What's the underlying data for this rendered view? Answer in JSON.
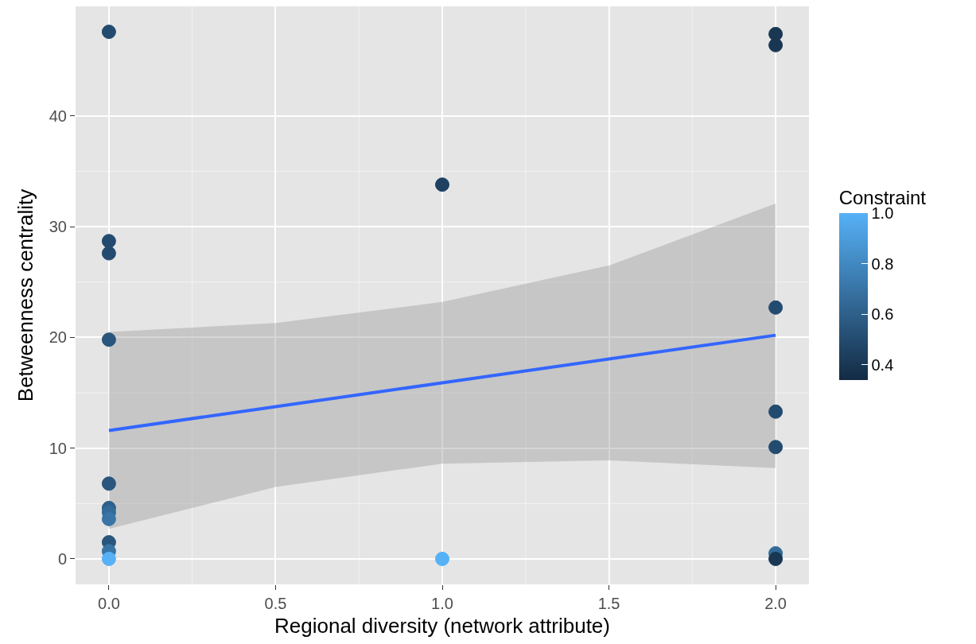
{
  "chart_data": {
    "type": "scatter",
    "xlabel": "Regional diversity (network attribute)",
    "ylabel": "Betweenness centrality",
    "clabel": "Constraint",
    "series": [
      {
        "colors": [
          "#234b6f",
          "#234b6f",
          "#234b6f",
          "#28567c",
          "#28567c",
          "#2d608a",
          "#326a98",
          "#3874a5",
          "#28567c",
          "#3874a5",
          "#56b1f7",
          "#1e4161",
          "#56b1f7",
          "#193753",
          "#193753",
          "#234b6f",
          "#234b6f",
          "#234b6f",
          "#326a98",
          "#193753"
        ],
        "x": [
          0,
          0,
          0,
          0,
          0,
          0,
          0,
          0,
          0,
          0,
          0,
          1,
          1,
          2,
          2,
          2,
          2,
          2,
          2,
          2
        ],
        "values": [
          47.6,
          28.7,
          27.6,
          19.8,
          6.8,
          4.6,
          4.2,
          3.6,
          1.5,
          0.7,
          0,
          33.8,
          0,
          47.4,
          46.4,
          22.7,
          13.3,
          10.1,
          0.5,
          0
        ],
        "cvalues": [
          0.5,
          0.5,
          0.5,
          0.55,
          0.55,
          0.6,
          0.65,
          0.7,
          0.55,
          0.7,
          1.0,
          0.45,
          1.0,
          0.4,
          0.4,
          0.5,
          0.5,
          0.5,
          0.65,
          0.4
        ]
      },
      {
        "type": "line",
        "marker": "none",
        "color": "#3366ff",
        "x": [
          0,
          0.5,
          1,
          1.5,
          2
        ],
        "values": [
          11.6,
          13.75,
          15.9,
          18.05,
          20.2
        ],
        "lower": [
          2.7,
          6.5,
          8.6,
          8.9,
          8.2
        ],
        "upper": [
          20.5,
          21.3,
          23.2,
          26.5,
          32.1
        ]
      }
    ],
    "clim": [
      0.34,
      1.0
    ],
    "cticks": [
      0.4,
      0.6,
      0.8,
      {
        "value": 1.0,
        "label": "1.0"
      }
    ],
    "xlim": [
      -0.1,
      2.1
    ],
    "xticks": [
      {
        "value": 0,
        "label": "0.0"
      },
      0.5,
      {
        "value": 1,
        "label": "1.0"
      },
      1.5,
      {
        "value": 2,
        "label": "2.0"
      }
    ],
    "ylim": [
      -2.3,
      49.9
    ],
    "yticks": [
      0,
      10,
      20,
      30,
      40
    ],
    "grid": true,
    "marker": "circle",
    "line_style": "solid"
  }
}
